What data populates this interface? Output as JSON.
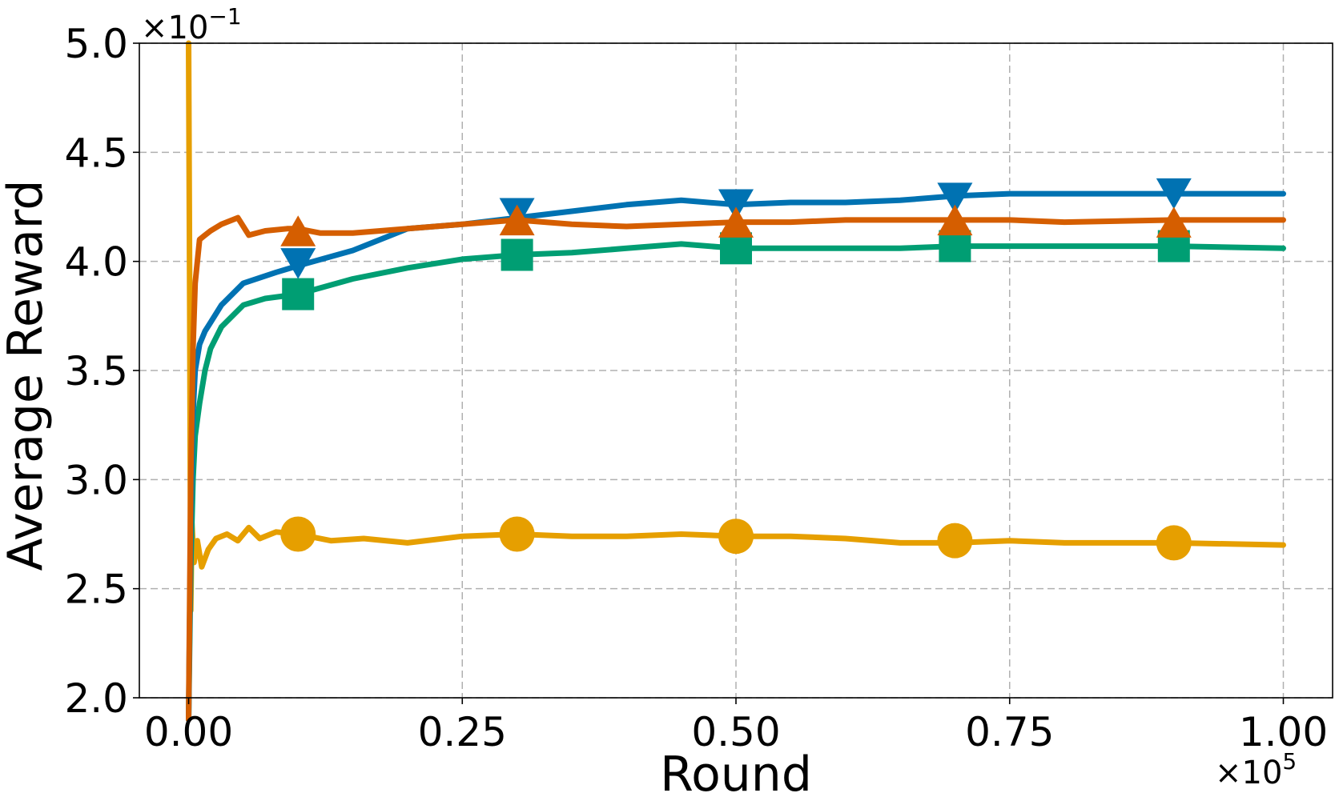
{
  "chart_data": {
    "type": "line",
    "title": "",
    "xlabel": "Round",
    "ylabel": "Average Reward",
    "x_multiplier": "×10",
    "x_multiplier_exp": "5",
    "y_multiplier": "×10",
    "y_multiplier_exp": "−1",
    "xlim": [
      -0.045,
      1.045
    ],
    "ylim": [
      2.0,
      5.0
    ],
    "x_ticks": [
      0.0,
      0.25,
      0.5,
      0.75,
      1.0
    ],
    "x_tick_labels": [
      "0.00",
      "0.25",
      "0.50",
      "0.75",
      "1.00"
    ],
    "y_ticks": [
      2.0,
      2.5,
      3.0,
      3.5,
      4.0,
      4.5,
      5.0
    ],
    "y_tick_labels": [
      "2.0",
      "2.5",
      "3.0",
      "3.5",
      "4.0",
      "4.5",
      "5.0"
    ],
    "grid": true,
    "series": [
      {
        "color": "#E69F00",
        "marker": "circle",
        "points": [
          [
            0.0,
            5.0
          ],
          [
            0.001,
            3.8
          ],
          [
            0.002,
            2.4
          ],
          [
            0.003,
            2.8
          ],
          [
            0.005,
            2.62
          ],
          [
            0.008,
            2.72
          ],
          [
            0.012,
            2.6
          ],
          [
            0.018,
            2.68
          ],
          [
            0.025,
            2.73
          ],
          [
            0.035,
            2.75
          ],
          [
            0.045,
            2.72
          ],
          [
            0.055,
            2.78
          ],
          [
            0.065,
            2.73
          ],
          [
            0.08,
            2.76
          ],
          [
            0.1,
            2.75
          ],
          [
            0.13,
            2.72
          ],
          [
            0.16,
            2.73
          ],
          [
            0.2,
            2.71
          ],
          [
            0.25,
            2.74
          ],
          [
            0.3,
            2.75
          ],
          [
            0.35,
            2.74
          ],
          [
            0.4,
            2.74
          ],
          [
            0.45,
            2.75
          ],
          [
            0.5,
            2.74
          ],
          [
            0.55,
            2.74
          ],
          [
            0.6,
            2.73
          ],
          [
            0.65,
            2.71
          ],
          [
            0.7,
            2.71
          ],
          [
            0.75,
            2.72
          ],
          [
            0.8,
            2.71
          ],
          [
            0.9,
            2.71
          ],
          [
            1.0,
            2.7
          ]
        ],
        "markers": [
          [
            0.1,
            2.75
          ],
          [
            0.3,
            2.75
          ],
          [
            0.5,
            2.74
          ],
          [
            0.7,
            2.72
          ],
          [
            0.9,
            2.71
          ]
        ]
      },
      {
        "color": "#009E73",
        "marker": "square",
        "points": [
          [
            0.0,
            1.9
          ],
          [
            0.002,
            2.6
          ],
          [
            0.004,
            3.0
          ],
          [
            0.006,
            3.2
          ],
          [
            0.01,
            3.35
          ],
          [
            0.015,
            3.5
          ],
          [
            0.02,
            3.6
          ],
          [
            0.03,
            3.7
          ],
          [
            0.05,
            3.8
          ],
          [
            0.07,
            3.83
          ],
          [
            0.1,
            3.85
          ],
          [
            0.15,
            3.92
          ],
          [
            0.2,
            3.97
          ],
          [
            0.25,
            4.01
          ],
          [
            0.3,
            4.03
          ],
          [
            0.35,
            4.04
          ],
          [
            0.4,
            4.06
          ],
          [
            0.45,
            4.08
          ],
          [
            0.5,
            4.06
          ],
          [
            0.55,
            4.06
          ],
          [
            0.6,
            4.06
          ],
          [
            0.65,
            4.06
          ],
          [
            0.7,
            4.07
          ],
          [
            0.75,
            4.07
          ],
          [
            0.8,
            4.07
          ],
          [
            0.9,
            4.07
          ],
          [
            1.0,
            4.06
          ]
        ],
        "markers": [
          [
            0.1,
            3.85
          ],
          [
            0.3,
            4.03
          ],
          [
            0.5,
            4.06
          ],
          [
            0.7,
            4.07
          ],
          [
            0.9,
            4.07
          ]
        ]
      },
      {
        "color": "#0072B2",
        "marker": "triangle-down",
        "points": [
          [
            0.0,
            1.9
          ],
          [
            0.002,
            2.8
          ],
          [
            0.004,
            3.3
          ],
          [
            0.006,
            3.5
          ],
          [
            0.01,
            3.62
          ],
          [
            0.015,
            3.68
          ],
          [
            0.02,
            3.72
          ],
          [
            0.03,
            3.8
          ],
          [
            0.05,
            3.9
          ],
          [
            0.08,
            3.95
          ],
          [
            0.1,
            3.98
          ],
          [
            0.15,
            4.05
          ],
          [
            0.2,
            4.15
          ],
          [
            0.25,
            4.17
          ],
          [
            0.3,
            4.2
          ],
          [
            0.35,
            4.23
          ],
          [
            0.4,
            4.26
          ],
          [
            0.45,
            4.28
          ],
          [
            0.5,
            4.26
          ],
          [
            0.55,
            4.27
          ],
          [
            0.6,
            4.27
          ],
          [
            0.65,
            4.28
          ],
          [
            0.7,
            4.3
          ],
          [
            0.75,
            4.31
          ],
          [
            0.8,
            4.31
          ],
          [
            0.9,
            4.31
          ],
          [
            1.0,
            4.31
          ]
        ],
        "markers": [
          [
            0.1,
            4.0
          ],
          [
            0.3,
            4.23
          ],
          [
            0.5,
            4.27
          ],
          [
            0.7,
            4.3
          ],
          [
            0.9,
            4.32
          ]
        ]
      },
      {
        "color": "#D55E00",
        "marker": "triangle-up",
        "points": [
          [
            0.0,
            1.9
          ],
          [
            0.002,
            3.0
          ],
          [
            0.004,
            3.6
          ],
          [
            0.006,
            3.9
          ],
          [
            0.01,
            4.1
          ],
          [
            0.015,
            4.12
          ],
          [
            0.02,
            4.14
          ],
          [
            0.03,
            4.17
          ],
          [
            0.045,
            4.2
          ],
          [
            0.055,
            4.12
          ],
          [
            0.07,
            4.14
          ],
          [
            0.09,
            4.15
          ],
          [
            0.1,
            4.15
          ],
          [
            0.12,
            4.13
          ],
          [
            0.15,
            4.13
          ],
          [
            0.2,
            4.15
          ],
          [
            0.25,
            4.17
          ],
          [
            0.3,
            4.19
          ],
          [
            0.35,
            4.17
          ],
          [
            0.4,
            4.16
          ],
          [
            0.45,
            4.17
          ],
          [
            0.5,
            4.18
          ],
          [
            0.55,
            4.18
          ],
          [
            0.6,
            4.19
          ],
          [
            0.65,
            4.19
          ],
          [
            0.7,
            4.19
          ],
          [
            0.75,
            4.19
          ],
          [
            0.8,
            4.18
          ],
          [
            0.9,
            4.19
          ],
          [
            1.0,
            4.19
          ]
        ],
        "markers": [
          [
            0.1,
            4.13
          ],
          [
            0.3,
            4.18
          ],
          [
            0.5,
            4.17
          ],
          [
            0.7,
            4.18
          ],
          [
            0.9,
            4.17
          ]
        ]
      }
    ]
  }
}
